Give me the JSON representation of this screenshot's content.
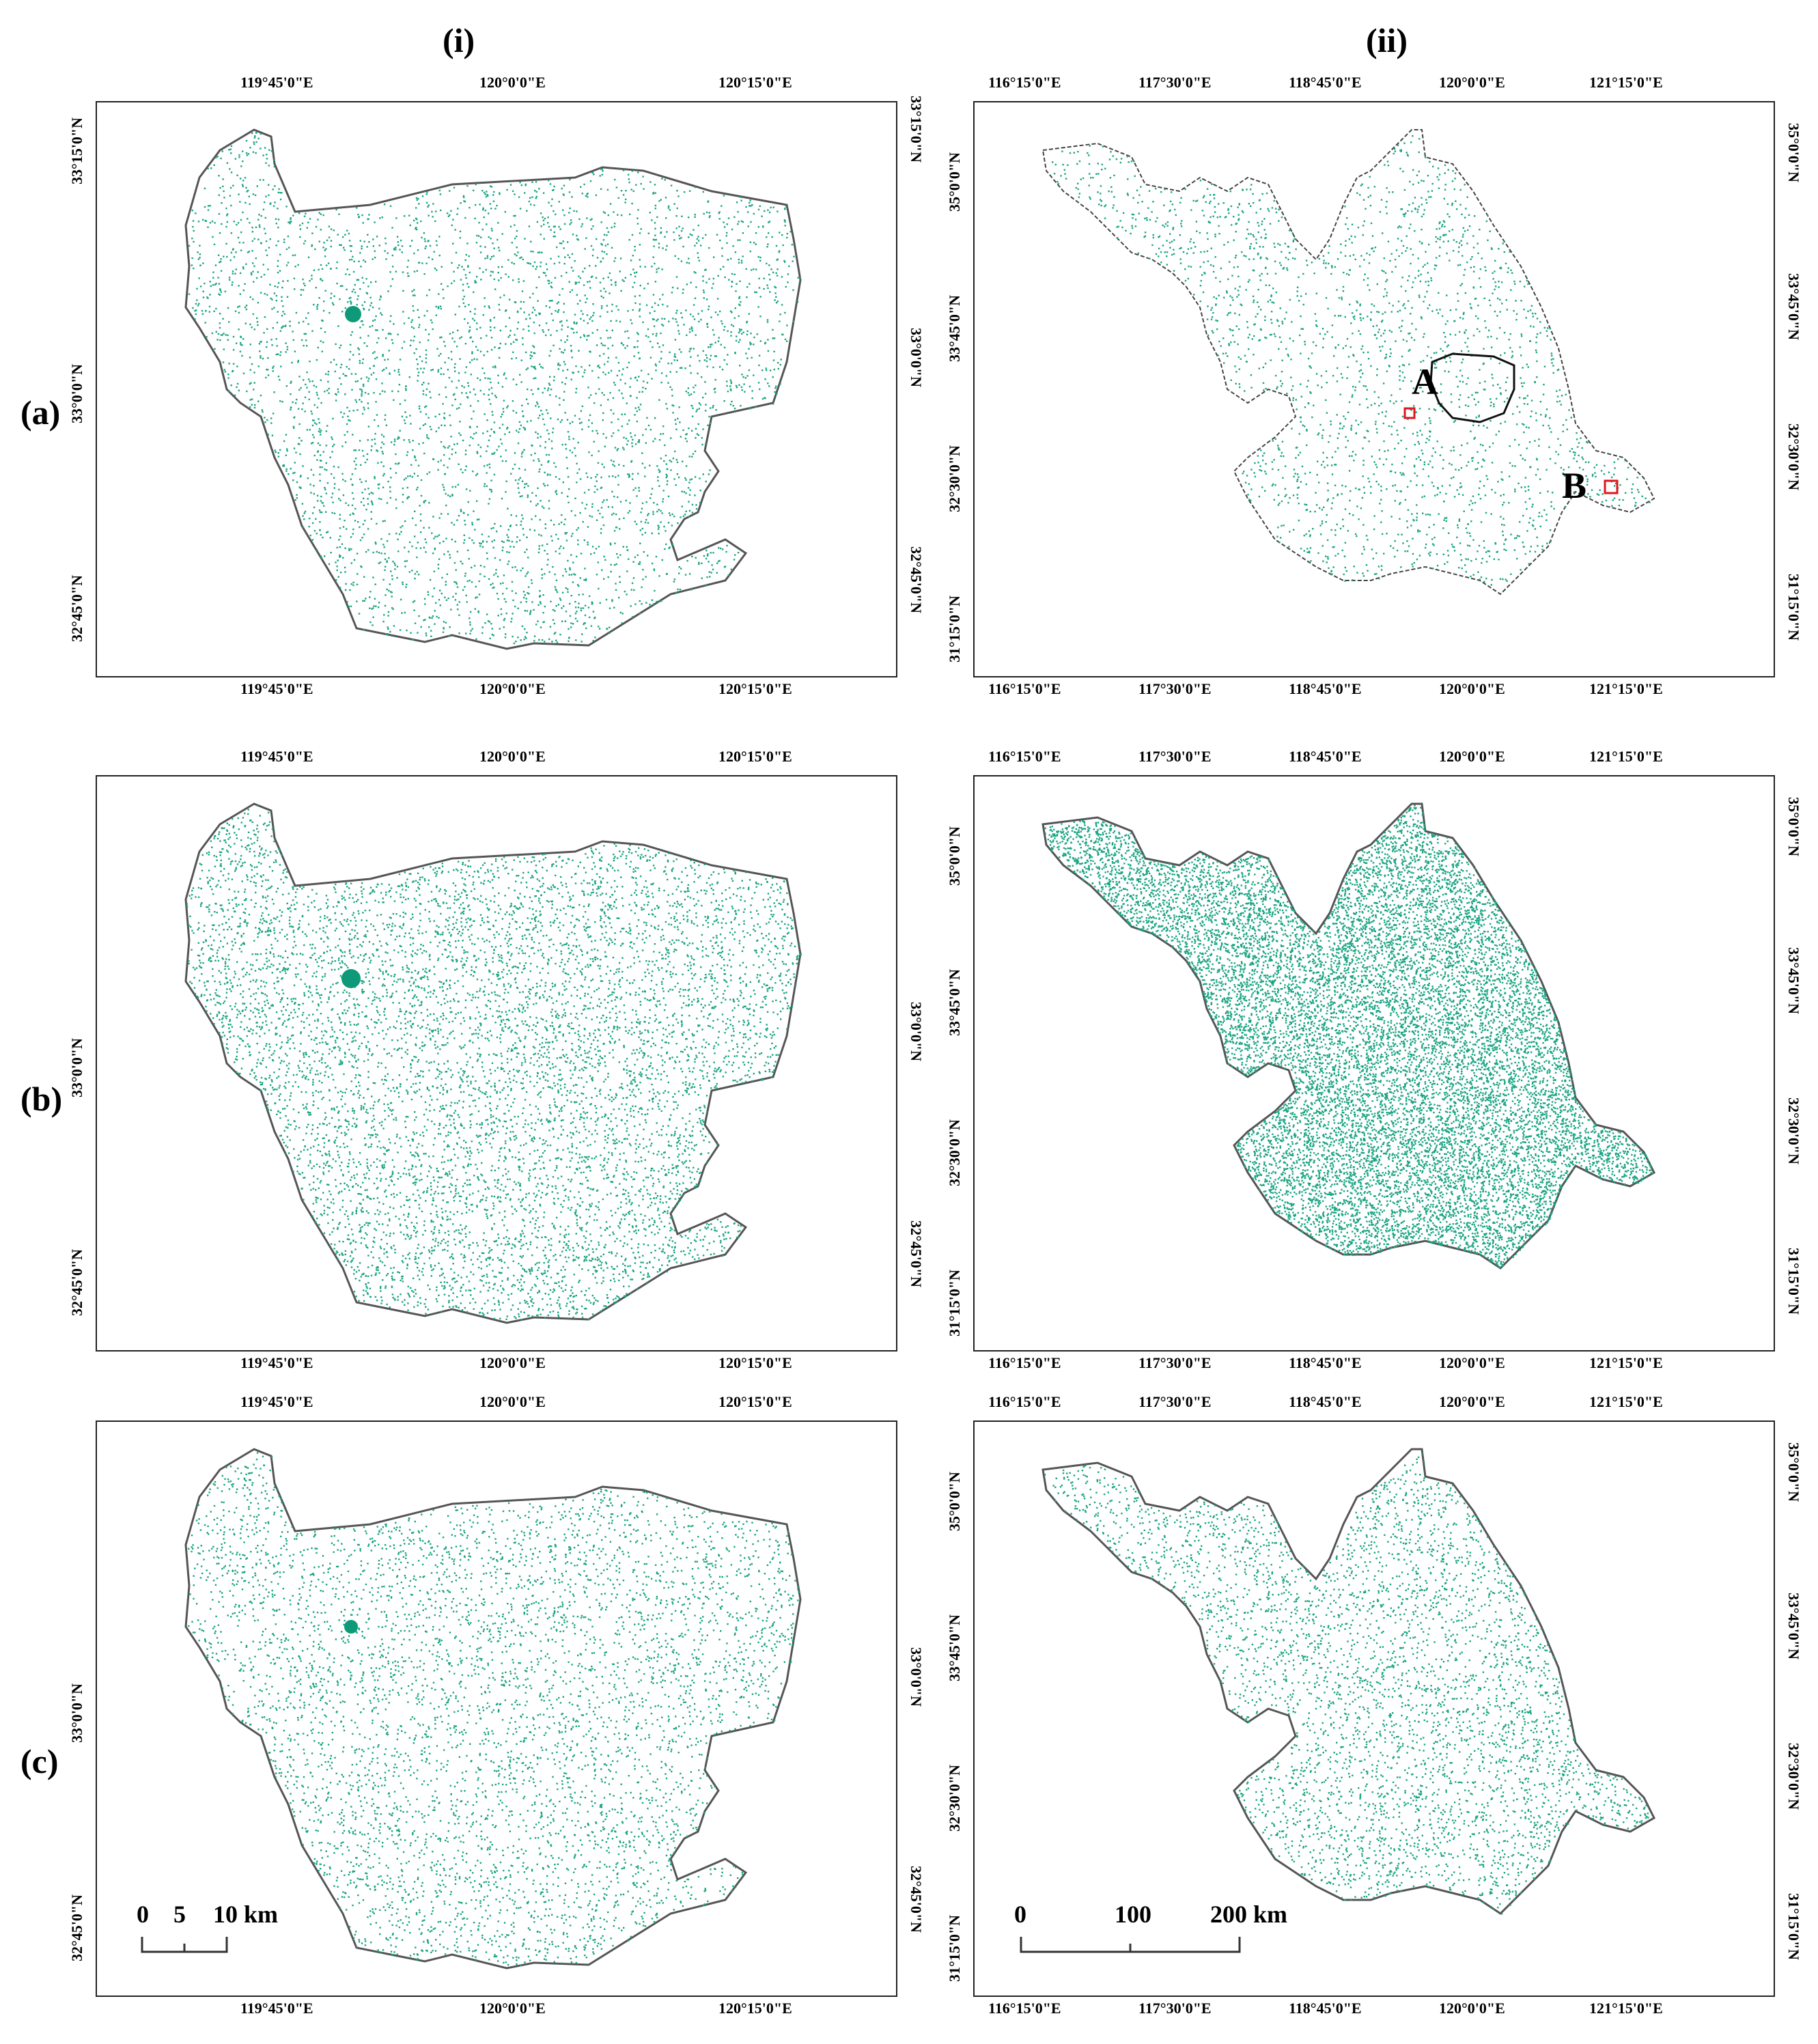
{
  "headers": {
    "col_i": "(i)",
    "col_ii": "(ii)"
  },
  "rows": [
    "(a)",
    "(b)",
    "(c)"
  ],
  "left_axis": {
    "lon_labels": [
      "119°45'0\"E",
      "120°0'0\"E",
      "120°15'0\"E"
    ],
    "lat_labels": [
      "33°15'0\"N",
      "33°0'0\"N",
      "32°45'0\"N"
    ]
  },
  "right_axis": {
    "lon_labels": [
      "116°15'0\"E",
      "117°30'0\"E",
      "118°45'0\"E",
      "120°0'0\"E",
      "121°15'0\"E"
    ],
    "lat_labels": [
      "35°0'0\"N",
      "33°45'0\"N",
      "32°30'0\"N",
      "31°15'0\"N"
    ]
  },
  "scale_left": {
    "labels": [
      "0",
      "5",
      "10 km"
    ]
  },
  "scale_right": {
    "labels": [
      "0",
      "100",
      "200 km"
    ]
  },
  "markers": {
    "a": "A",
    "b": "B"
  },
  "colors": {
    "points": "#1aa483",
    "dense": "#0e9a78",
    "boundary": "#555555",
    "marker": "#e0161b"
  }
}
